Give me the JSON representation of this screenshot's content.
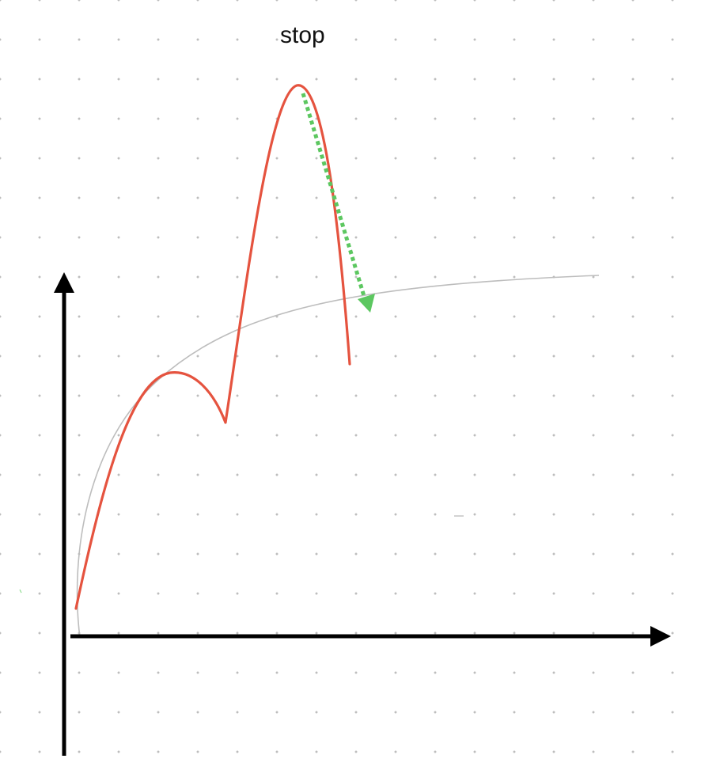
{
  "diagram": {
    "annotation": "stop",
    "colors": {
      "background": "#ffffff",
      "grid_dot": "#bdbdbd",
      "axes": "#000000",
      "red_curve": "#e5533f",
      "gray_curve": "#bdbdbd",
      "green_arrow": "#5cc760"
    }
  }
}
